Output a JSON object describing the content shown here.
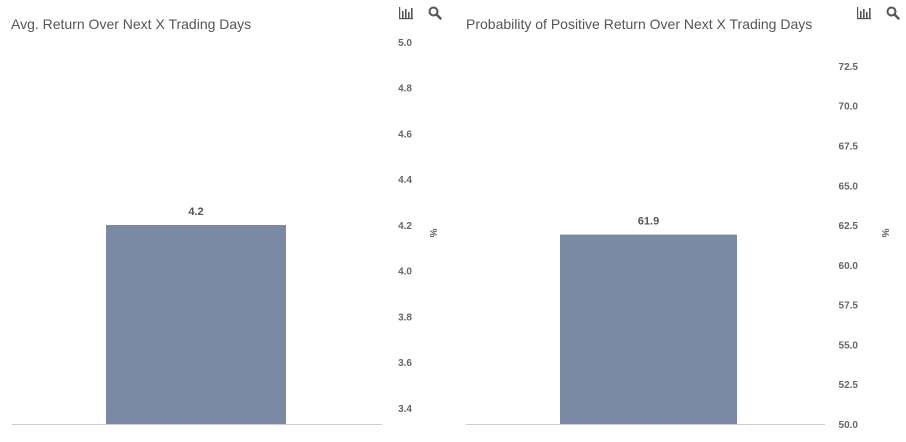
{
  "chart_data": [
    {
      "type": "bar",
      "title": "Avg. Return Over Next X Trading Days",
      "categories": [
        ""
      ],
      "values": [
        4.2
      ],
      "data_labels": [
        "4.2"
      ],
      "ylabel": "%",
      "ylim": [
        3.33,
        5.0
      ],
      "y_ticks": [
        3.4,
        3.6,
        3.8,
        4.0,
        4.2,
        4.4,
        4.6,
        4.8,
        5.0
      ],
      "y_tick_labels": [
        "3.4",
        "3.6",
        "3.8",
        "4.0",
        "4.2",
        "4.4",
        "4.6",
        "4.8",
        "5.0"
      ],
      "y_axis_side": "right",
      "grid": false,
      "legend": "none",
      "bar_color": "#7a89a4"
    },
    {
      "type": "bar",
      "title": "Probability of Positive Return Over Next X Trading Days",
      "categories": [
        ""
      ],
      "values": [
        61.9
      ],
      "data_labels": [
        "61.9"
      ],
      "ylabel": "%",
      "ylim": [
        50.0,
        74.0
      ],
      "y_ticks": [
        50.0,
        52.5,
        55.0,
        57.5,
        60.0,
        62.5,
        65.0,
        67.5,
        70.0,
        72.5
      ],
      "y_tick_labels": [
        "50.0",
        "52.5",
        "55.0",
        "57.5",
        "60.0",
        "62.5",
        "65.0",
        "67.5",
        "70.0",
        "72.5"
      ],
      "y_axis_side": "right",
      "grid": false,
      "legend": "none",
      "bar_color": "#7a89a4"
    }
  ],
  "toolbar": {
    "icons": [
      "bar-chart-icon",
      "search-icon"
    ]
  },
  "colors": {
    "bar": "#7a89a4",
    "axis_line": "#cccccc",
    "text": "#555555"
  }
}
